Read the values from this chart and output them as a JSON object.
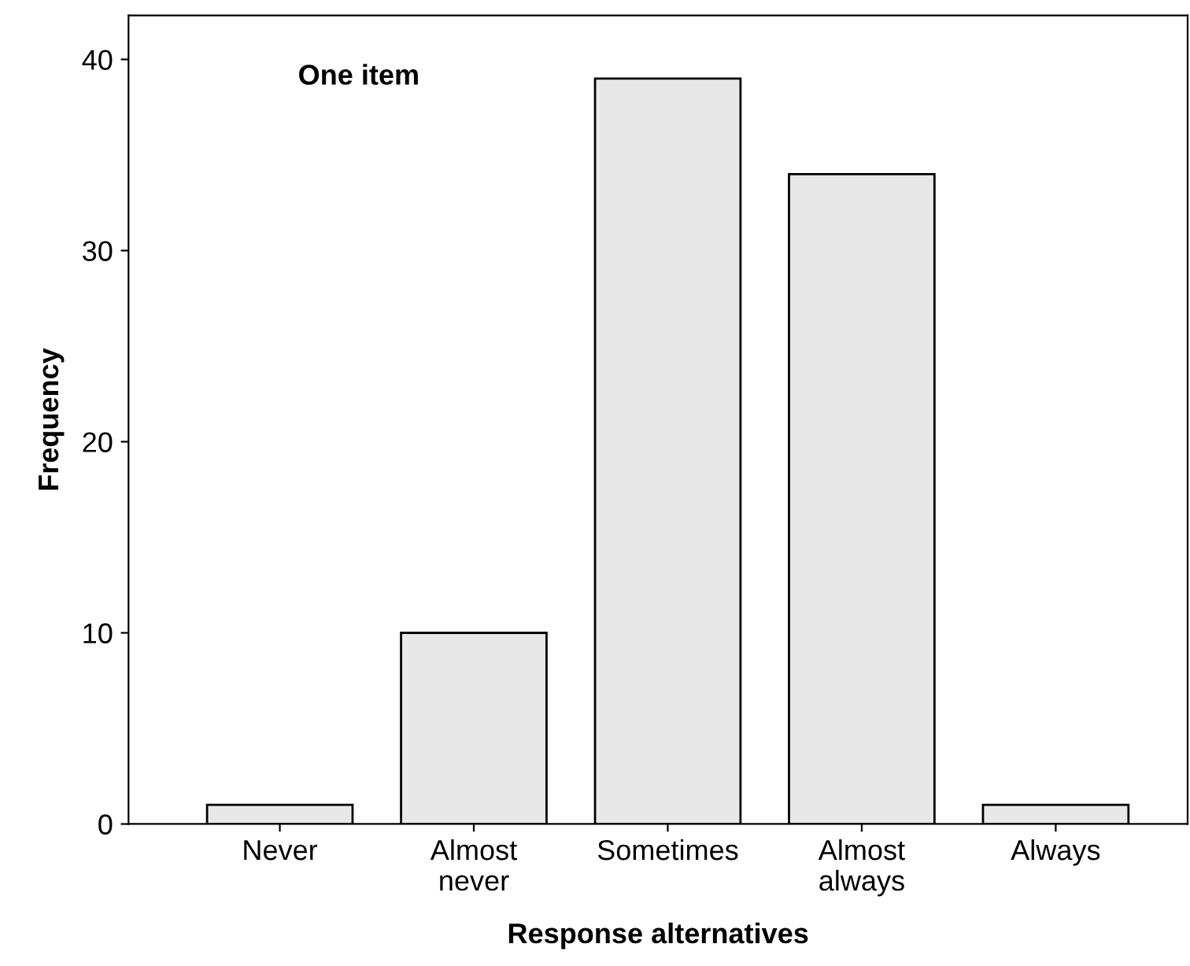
{
  "chart_data": {
    "type": "bar",
    "xlabel": "Response alternatives",
    "ylabel": "Frequency",
    "annotations": [
      "One item"
    ],
    "categories": [
      "Never",
      "Almost\nnever",
      "Sometimes",
      "Almost\nalways",
      "Always"
    ],
    "values": [
      1,
      10,
      39,
      34,
      1
    ],
    "color": "#e8e8e8",
    "ylim": [
      0,
      42.3
    ],
    "yticks": [
      0,
      10,
      20,
      30,
      40
    ],
    "grid": false,
    "legend": false
  }
}
